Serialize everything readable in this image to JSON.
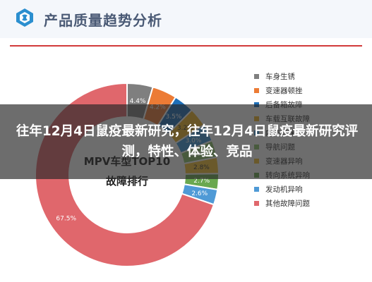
{
  "header": {
    "title": "产品质量趋势分析"
  },
  "overlay": {
    "headline": "往年12月4日鼠疫最新研究，往年12月4日鼠疫最新研究评测，特性、体验、竞品"
  },
  "chart_data": {
    "type": "pie",
    "style": "donut",
    "title": "",
    "center_text": [
      "MPV车型TOP10",
      "故障排行"
    ],
    "slices": [
      {
        "label": "车身生锈",
        "value": 4.4,
        "value_label": "4.4%",
        "color": "#7f7f7f"
      },
      {
        "label": "变速器顿挫",
        "value": 4.2,
        "value_label": "4.2%",
        "color": "#ec7b35"
      },
      {
        "label": "后备箱故障",
        "value": 3.5,
        "value_label": "3.5%",
        "color": "#1d6fb8"
      },
      {
        "label": "车载互联故障",
        "value": 3.2,
        "value_label": "3.2%",
        "color": "#f0b327"
      },
      {
        "label": "内饰异味",
        "value": 3.0,
        "value_label": "3.0%",
        "color": "#3a96d8"
      },
      {
        "label": "导航问题",
        "value": 2.9,
        "value_label": "2.9%",
        "color": "#8cc56b"
      },
      {
        "label": "变速器异响",
        "value": 2.8,
        "value_label": "2.8%",
        "color": "#f5c233"
      },
      {
        "label": "转向系统异响",
        "value": 2.7,
        "value_label": "2.7%",
        "color": "#6aa84f"
      },
      {
        "label": "发动机异响",
        "value": 2.6,
        "value_label": "2.6%",
        "color": "#4f9ad6"
      },
      {
        "label": "其他故障问题",
        "value": 67.5,
        "value_label": "67.5%",
        "color": "#e0676c"
      }
    ],
    "legend": "right"
  }
}
